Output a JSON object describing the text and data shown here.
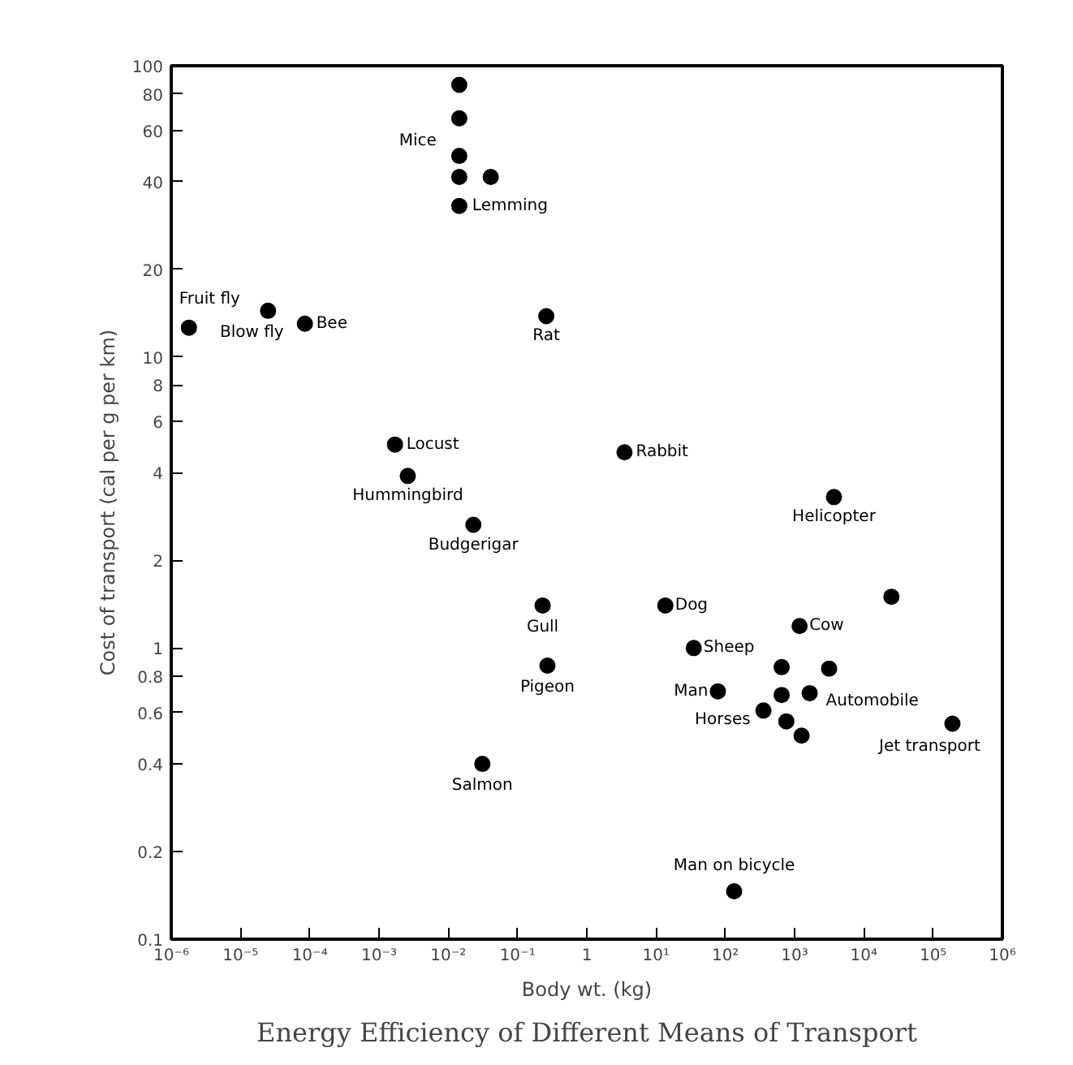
{
  "chart_data": {
    "type": "scatter",
    "title": "Energy Efficiency of Different Means of Transport",
    "xlabel": "Body wt. (kg)",
    "ylabel": "Cost of transport (cal per g per km)",
    "log": "xy",
    "grid": false,
    "marker": "circle",
    "xlim": [
      1e-06,
      1000000.0
    ],
    "ylim": [
      0.1,
      100
    ],
    "xticks": [
      {
        "value": 1e-06,
        "label": "10⁻⁶"
      },
      {
        "value": 1e-05,
        "label": "10⁻⁵"
      },
      {
        "value": 0.0001,
        "label": "10⁻⁴"
      },
      {
        "value": 0.001,
        "label": "10⁻³"
      },
      {
        "value": 0.01,
        "label": "10⁻²"
      },
      {
        "value": 0.1,
        "label": "10⁻¹"
      },
      1,
      {
        "value": 10,
        "label": "10¹"
      },
      {
        "value": 100,
        "label": "10²"
      },
      {
        "value": 1000,
        "label": "10³"
      },
      {
        "value": 10000,
        "label": "10⁴"
      },
      {
        "value": 100000,
        "label": "10⁵"
      },
      {
        "value": 1000000,
        "label": "10⁶"
      }
    ],
    "yticks": [
      0.1,
      0.2,
      0.4,
      0.6,
      0.8,
      1,
      2,
      4,
      6,
      8,
      10,
      20,
      40,
      60,
      80,
      100
    ],
    "series": [
      {
        "color": "#000000",
        "x": [
          0.0144,
          0.0144,
          0.0144,
          0.0144,
          0.0144,
          0.041,
          1.8e-06,
          2.5e-05,
          8.5e-05,
          0.26,
          0.0017,
          0.0026,
          0.023,
          3.5,
          3700,
          0.23,
          0.27,
          0.031,
          13.6,
          35,
          78,
          1180,
          25000,
          650,
          650,
          355,
          760,
          1260,
          1650,
          3150,
          190000,
          134
        ],
        "values": [
          86,
          66,
          49,
          41.5,
          33,
          41.5,
          12.6,
          14.4,
          13,
          13.8,
          5.0,
          3.9,
          2.65,
          4.7,
          3.3,
          1.4,
          0.87,
          0.4,
          1.4,
          1.0,
          0.71,
          1.19,
          1.5,
          0.86,
          0.69,
          0.61,
          0.56,
          0.5,
          0.7,
          0.85,
          0.55,
          0.146
        ]
      }
    ],
    "annotations": [
      {
        "text": "Mice",
        "x": 0.0144,
        "y": 55
      },
      {
        "text": "Lemming",
        "x": 0.0144,
        "y": 33
      },
      {
        "text": "Fruit fly",
        "x": 1.8e-06,
        "y": 12.6
      },
      {
        "text": "Blow fly",
        "x": 2.5e-05,
        "y": 14.4
      },
      {
        "text": "Bee",
        "x": 8.5e-05,
        "y": 13
      },
      {
        "text": "Rat",
        "x": 0.26,
        "y": 13.8
      },
      {
        "text": "Locust",
        "x": 0.0017,
        "y": 5.0
      },
      {
        "text": "Hummingbird",
        "x": 0.0026,
        "y": 3.9
      },
      {
        "text": "Budgerigar",
        "x": 0.023,
        "y": 2.65
      },
      {
        "text": "Rabbit",
        "x": 3.5,
        "y": 4.7
      },
      {
        "text": "Helicopter",
        "x": 3700,
        "y": 3.3
      },
      {
        "text": "Gull",
        "x": 0.23,
        "y": 1.4
      },
      {
        "text": "Pigeon",
        "x": 0.27,
        "y": 0.87
      },
      {
        "text": "Salmon",
        "x": 0.031,
        "y": 0.4
      },
      {
        "text": "Dog",
        "x": 13.6,
        "y": 1.4
      },
      {
        "text": "Sheep",
        "x": 35,
        "y": 1.0
      },
      {
        "text": "Cow",
        "x": 1180,
        "y": 1.19
      },
      {
        "text": "Man",
        "x": 78,
        "y": 0.71
      },
      {
        "text": "Automobile",
        "x": 1650,
        "y": 0.7
      },
      {
        "text": "Horses",
        "x": 355,
        "y": 0.61
      },
      {
        "text": "Jet transport",
        "x": 190000,
        "y": 0.55
      },
      {
        "text": "Man on bicycle",
        "x": 134,
        "y": 0.146
      }
    ]
  }
}
